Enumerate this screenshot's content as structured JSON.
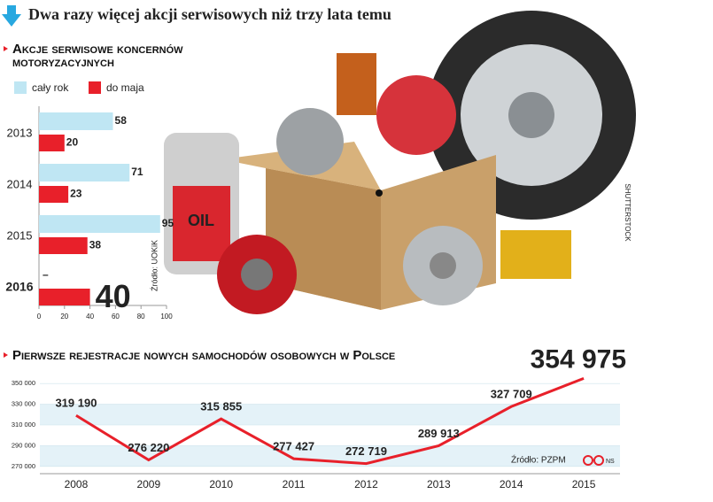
{
  "title": "Dwa razy więcej akcji serwisowych niż trzy lata temu",
  "credit": "SHUTTERSTOCK",
  "chart_data": [
    {
      "type": "bar",
      "orientation": "horizontal",
      "title": "Akcje serwisowe koncernów motoryzacyjnych",
      "source": "Źródło: UOKiK",
      "categories": [
        "2013",
        "2014",
        "2015",
        "2016"
      ],
      "series": [
        {
          "name": "cały rok",
          "color": "#bfe6f3",
          "values": [
            58,
            71,
            95,
            null
          ],
          "value_labels": [
            "58",
            "71",
            "95",
            "–"
          ]
        },
        {
          "name": "do maja",
          "color": "#e8202a",
          "values": [
            20,
            23,
            38,
            40
          ]
        }
      ],
      "xlim": [
        0,
        100
      ],
      "xticks": [
        0,
        20,
        40,
        60,
        80,
        100
      ]
    },
    {
      "type": "line",
      "title": "Pierwsze rejestracje nowych samochodów osobowych w Polsce",
      "source": "Źródło: PZPM",
      "note": "NS",
      "categories": [
        "2008",
        "2009",
        "2010",
        "2011",
        "2012",
        "2013",
        "2014",
        "2015"
      ],
      "values": [
        319190,
        276220,
        315855,
        277427,
        272719,
        289913,
        327709,
        354975
      ],
      "value_labels": [
        "319 190",
        "276 220",
        "315 855",
        "277 427",
        "272 719",
        "289 913",
        "327 709",
        "354 975"
      ],
      "color": "#e8202a",
      "ylim": [
        263000,
        357000
      ],
      "yticks": [
        {
          "value": 270000,
          "label": "270 000"
        },
        {
          "value": 290000,
          "label": "290 000"
        },
        {
          "value": 310000,
          "label": "310 000"
        },
        {
          "value": 330000,
          "label": "330 000"
        },
        {
          "value": 350000,
          "label": "350 000"
        }
      ],
      "bands": true
    }
  ]
}
